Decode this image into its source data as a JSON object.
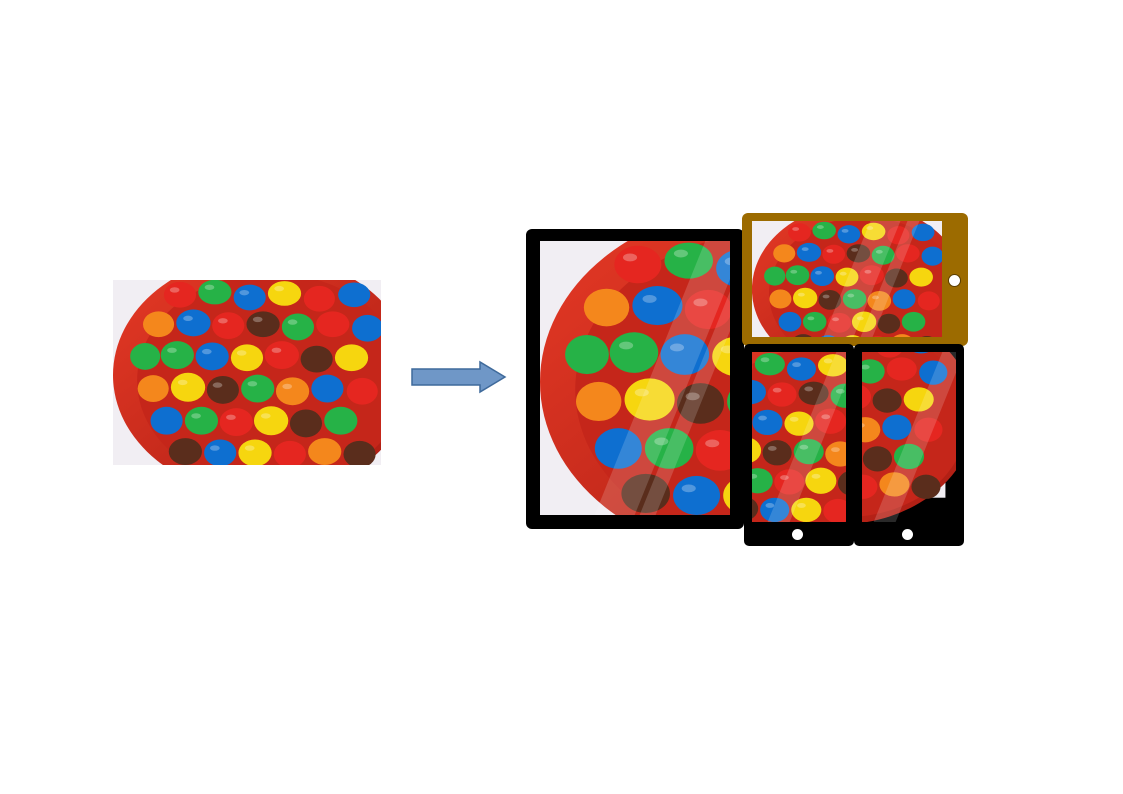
{
  "diagram": {
    "source_image": {
      "subject": "candy-bowl-photo"
    },
    "arrow": {
      "fill": "#6f97c7",
      "stroke": "#3f6a9b"
    },
    "devices": [
      {
        "name": "tablet-portrait",
        "frame_color": "#000000"
      },
      {
        "name": "phone-landscape",
        "frame_color": "#9c6b00"
      },
      {
        "name": "phone-portrait-left",
        "frame_color": "#000000"
      },
      {
        "name": "phone-portrait-right",
        "frame_color": "#000000"
      }
    ],
    "colors": {
      "bowl": "#d22a1c",
      "background": "#f1eef3",
      "candies": [
        "#e52620",
        "#0e6fd0",
        "#26b247",
        "#f6d60f",
        "#f4871c",
        "#5a2d1c"
      ]
    }
  }
}
